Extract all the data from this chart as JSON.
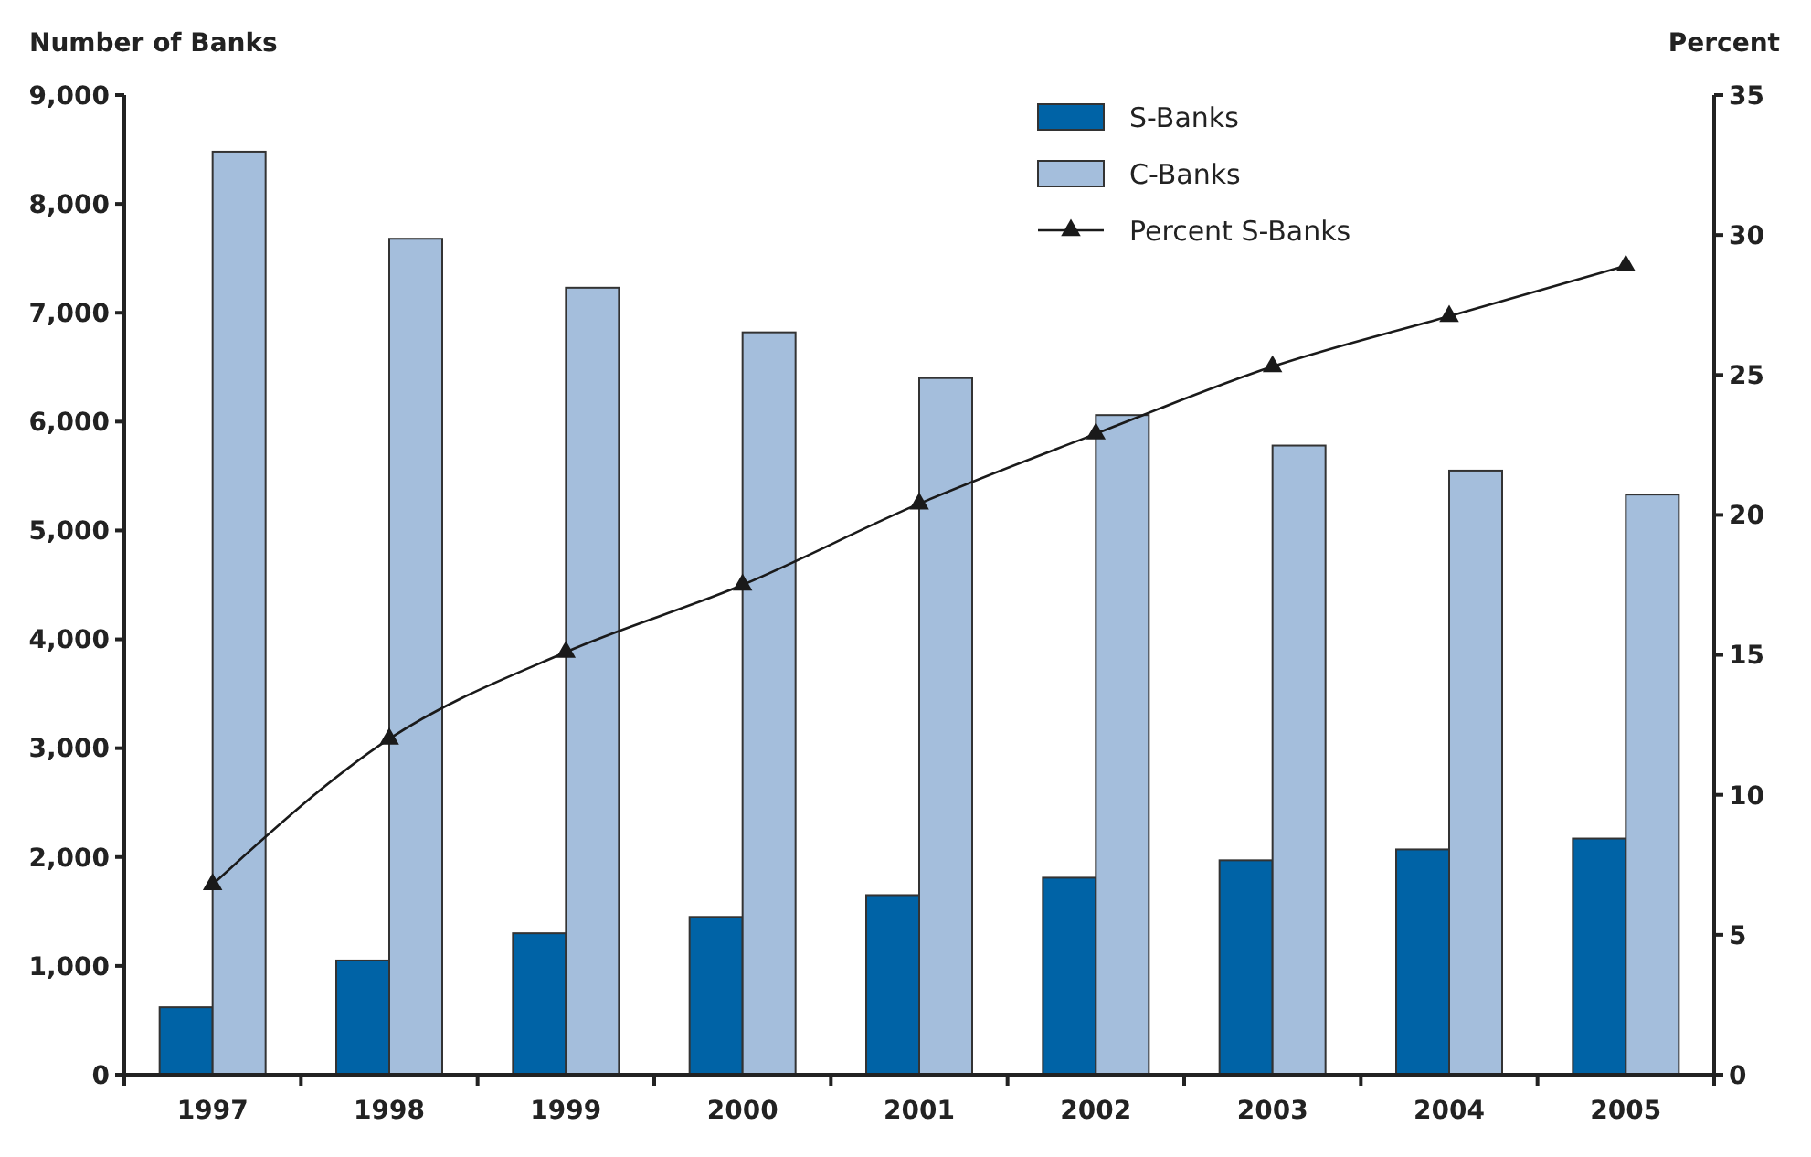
{
  "chart_data": {
    "type": "bar",
    "ylabel": "Number of Banks",
    "y2label": "Percent",
    "categories": [
      "1997",
      "1998",
      "1999",
      "2000",
      "2001",
      "2002",
      "2003",
      "2004",
      "2005"
    ],
    "series": [
      {
        "name": "S-Banks",
        "color": "#0063a6",
        "values": [
          620,
          1050,
          1300,
          1450,
          1650,
          1810,
          1970,
          2070,
          2170
        ]
      },
      {
        "name": "C-Banks",
        "color": "#a4bedc",
        "values": [
          8480,
          7680,
          7230,
          6820,
          6400,
          6060,
          5780,
          5550,
          5330
        ]
      },
      {
        "name": "Percent S-Banks",
        "type": "line",
        "axis": "y2",
        "color": "#1a1a1a",
        "marker": "triangle",
        "line_style": "solid",
        "values": [
          6.8,
          12.0,
          15.1,
          17.5,
          20.4,
          22.9,
          25.3,
          27.1,
          28.9
        ]
      }
    ],
    "ylim": [
      0,
      9000
    ],
    "yticks": [
      {
        "value": 0,
        "label": "0"
      },
      {
        "value": 1000,
        "label": "1,000"
      },
      {
        "value": 2000,
        "label": "2,000"
      },
      {
        "value": 3000,
        "label": "3,000"
      },
      {
        "value": 4000,
        "label": "4,000"
      },
      {
        "value": 5000,
        "label": "5,000"
      },
      {
        "value": 6000,
        "label": "6,000"
      },
      {
        "value": 7000,
        "label": "7,000"
      },
      {
        "value": 8000,
        "label": "8,000"
      },
      {
        "value": 9000,
        "label": "9,000"
      }
    ],
    "y2lim": [
      0,
      35
    ],
    "y2ticks": [
      0,
      5,
      10,
      15,
      20,
      25,
      30,
      35
    ],
    "legend": "top",
    "grid": false
  }
}
